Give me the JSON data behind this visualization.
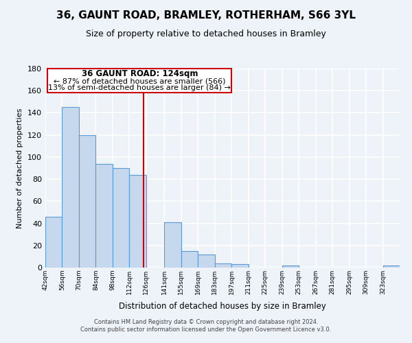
{
  "title": "36, GAUNT ROAD, BRAMLEY, ROTHERHAM, S66 3YL",
  "subtitle": "Size of property relative to detached houses in Bramley",
  "xlabel": "Distribution of detached houses by size in Bramley",
  "ylabel": "Number of detached properties",
  "footer_line1": "Contains HM Land Registry data © Crown copyright and database right 2024.",
  "footer_line2": "Contains public sector information licensed under the Open Government Licence v3.0.",
  "bin_labels": [
    "42sqm",
    "56sqm",
    "70sqm",
    "84sqm",
    "98sqm",
    "112sqm",
    "126sqm",
    "141sqm",
    "155sqm",
    "169sqm",
    "183sqm",
    "197sqm",
    "211sqm",
    "225sqm",
    "239sqm",
    "253sqm",
    "267sqm",
    "281sqm",
    "295sqm",
    "309sqm",
    "323sqm"
  ],
  "bar_values": [
    46,
    145,
    120,
    94,
    90,
    84,
    0,
    41,
    15,
    12,
    4,
    3,
    0,
    0,
    2,
    0,
    0,
    0,
    0,
    0,
    2
  ],
  "bin_edges": [
    42,
    56,
    70,
    84,
    98,
    112,
    126,
    141,
    155,
    169,
    183,
    197,
    211,
    225,
    239,
    253,
    267,
    281,
    295,
    309,
    323,
    337
  ],
  "property_size": 124,
  "bar_color": "#c5d8ed",
  "bar_edge_color": "#5b9bd5",
  "red_line_color": "#cc0000",
  "annotation_text_line1": "36 GAUNT ROAD: 124sqm",
  "annotation_text_line2": "← 87% of detached houses are smaller (566)",
  "annotation_text_line3": "13% of semi-detached houses are larger (84) →",
  "ylim": [
    0,
    180
  ],
  "yticks": [
    0,
    20,
    40,
    60,
    80,
    100,
    120,
    140,
    160,
    180
  ],
  "background_color": "#eef2f9",
  "grid_color": "#ffffff",
  "title_fontsize": 11,
  "subtitle_fontsize": 9,
  "annotation_fontsize": 8
}
